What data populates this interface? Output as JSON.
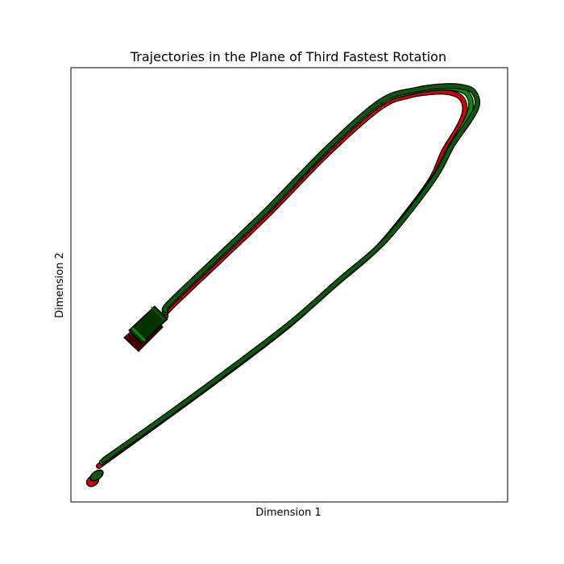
{
  "chart_data": {
    "type": "line",
    "title": "Trajectories in the Plane of Third Fastest Rotation",
    "xlabel": "Dimension 1",
    "ylabel": "Dimension 2",
    "xticks": [],
    "yticks": [],
    "grid": false,
    "legend": "none",
    "xlim": [
      0,
      100
    ],
    "ylim": [
      0,
      100
    ],
    "colors": {
      "red_series": "#cc0000",
      "green_series": "#0a8a0a",
      "dark_green_series": "#0a5a0a",
      "outline": "#000000",
      "start_marker_fill": "#003300",
      "start_marker_shadow": "#440000"
    },
    "series": [
      {
        "color": "#cc0000",
        "x": [
          4.8,
          20,
          35,
          50,
          62,
          72,
          80,
          85.5,
          88.5,
          92,
          93.5,
          93,
          91,
          87,
          80,
          73,
          60,
          46,
          34,
          22,
          21
        ],
        "y": [
          5,
          16.5,
          28,
          40,
          51,
          60,
          70,
          78,
          85,
          91,
          95,
          98,
          99.5,
          100,
          99,
          96,
          84,
          69,
          57,
          45,
          43
        ]
      },
      {
        "color": "#0a8a0a",
        "x": [
          5.5,
          21,
          36,
          51,
          63,
          73,
          81,
          86.5,
          90,
          93.5,
          95,
          94.5,
          92.5,
          88,
          81,
          73,
          60,
          46,
          34,
          22,
          21
        ],
        "y": [
          6,
          17.5,
          29,
          41,
          52,
          61,
          71,
          79,
          86,
          92,
          96,
          99,
          100.5,
          101,
          100,
          97,
          85,
          70,
          58,
          46,
          44
        ]
      },
      {
        "color": "#0a5a0a",
        "x": [
          6,
          21.5,
          36.5,
          51.5,
          63.5,
          73.5,
          81.5,
          87,
          90.5,
          94.5,
          96.5,
          96,
          94,
          89,
          81.5,
          73,
          60,
          46,
          34,
          22,
          21
        ],
        "y": [
          6.5,
          18,
          29.5,
          41.5,
          52.5,
          61.5,
          71.5,
          79.5,
          86.5,
          92.5,
          96.5,
          99.5,
          101,
          101.5,
          100.5,
          97.5,
          85.5,
          70.5,
          58.5,
          46.5,
          44.5
        ]
      }
    ]
  }
}
